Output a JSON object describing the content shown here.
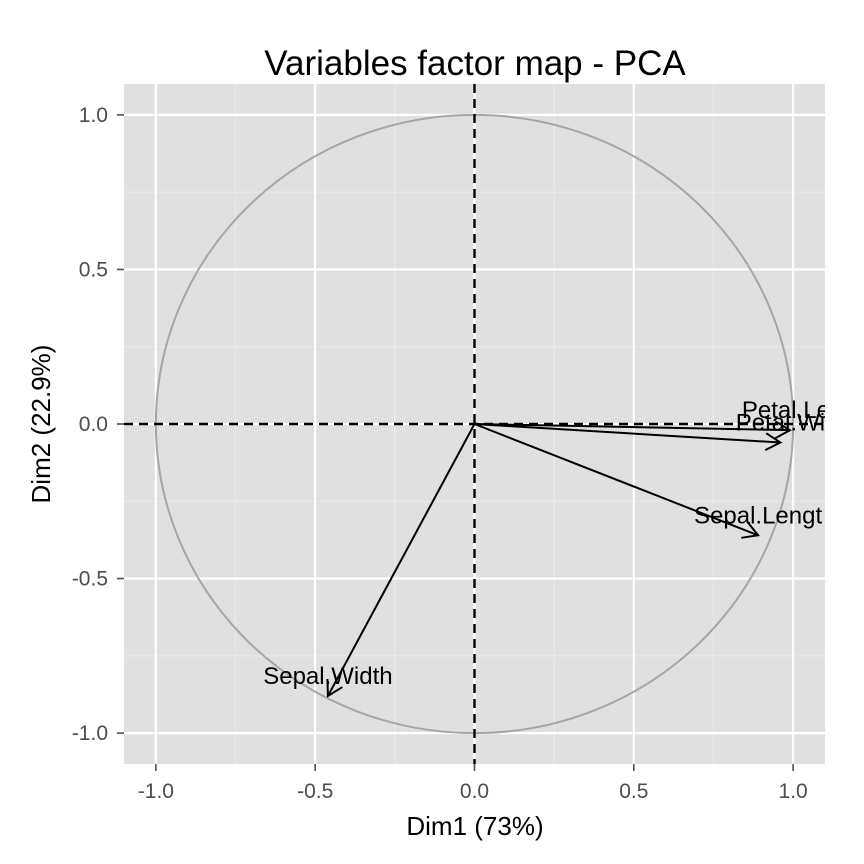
{
  "chart_data": {
    "type": "scatter",
    "title": "Variables factor map - PCA",
    "xlabel": "Dim1 (73%)",
    "ylabel": "Dim2 (22.9%)",
    "xlim": [
      -1.1,
      1.1
    ],
    "ylim": [
      -1.1,
      1.1
    ],
    "x_ticks": [
      -1.0,
      -0.5,
      0.0,
      0.5,
      1.0
    ],
    "y_ticks": [
      -1.0,
      -0.5,
      0.0,
      0.5,
      1.0
    ],
    "x_tick_labels": [
      "-1.0",
      "-0.5",
      "0.0",
      "0.5",
      "1.0"
    ],
    "y_tick_labels": [
      "-1.0",
      "-0.5",
      "0.0",
      "0.5",
      "1.0"
    ],
    "grid": true,
    "unit_circle": true,
    "reference_lines": {
      "x": 0,
      "y": 0,
      "style": "dashed"
    },
    "variables": [
      {
        "name": "Sepal.Length",
        "label": "Sepal.Lengt",
        "x": 0.89,
        "y": -0.36
      },
      {
        "name": "Sepal.Width",
        "label": "Sepal.Width",
        "x": -0.46,
        "y": -0.88
      },
      {
        "name": "Petal.Length",
        "label": "Petal.Ler",
        "x": 0.99,
        "y": -0.02
      },
      {
        "name": "Petal.Width",
        "label": "Petal.Wi",
        "x": 0.96,
        "y": -0.06
      }
    ],
    "colors": {
      "panel": "#e0e0e0",
      "grid_major": "#ffffff",
      "grid_minor": "#ebebeb",
      "circle": "#a6a6a6",
      "arrow": "#000000",
      "tick_text": "#4d4d4d"
    }
  }
}
